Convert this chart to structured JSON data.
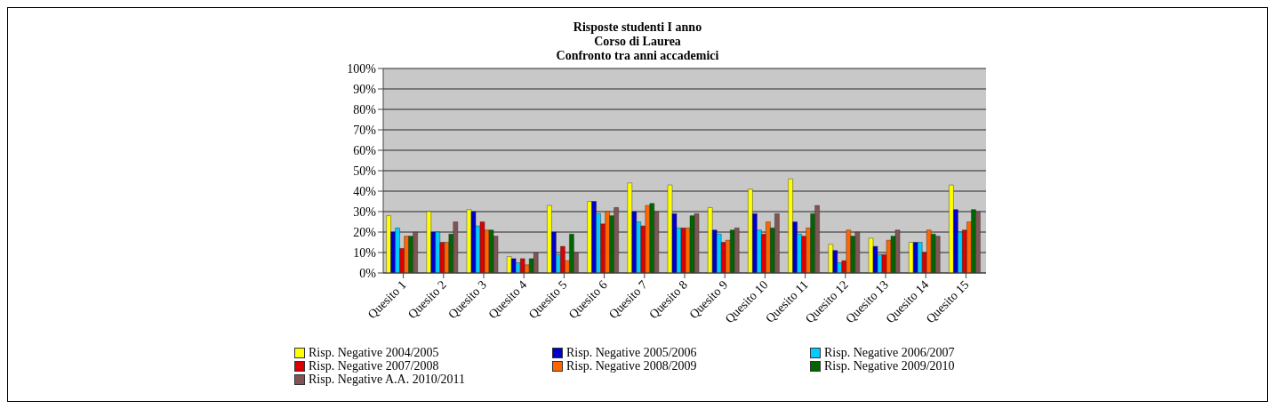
{
  "chart_data": {
    "type": "bar",
    "title": "Risposte studenti I anno\nCorso di Laurea\nConfronto tra anni accademici",
    "categories": [
      "Quesito 1",
      "Quesito 2",
      "Quesito 3",
      "Quesito 4",
      "Quesito 5",
      "Quesito 6",
      "Quesito 7",
      "Quesito 8",
      "Quesito 9",
      "Quesito 10",
      "Quesito 11",
      "Quesito 12",
      "Quesito 13",
      "Quesito 14",
      "Quesito 15"
    ],
    "series": [
      {
        "name": "Risp. Negative 2004/2005",
        "color": "#ffff00",
        "values": [
          28,
          30,
          31,
          8,
          33,
          35,
          44,
          43,
          32,
          41,
          46,
          14,
          17,
          15,
          43
        ]
      },
      {
        "name": "Risp. Negative 2005/2006",
        "color": "#0000cc",
        "values": [
          20,
          20,
          30,
          7,
          20,
          35,
          30,
          29,
          21,
          29,
          25,
          11,
          13,
          15,
          31
        ]
      },
      {
        "name": "Risp. Negative 2006/2007",
        "color": "#00ccff",
        "values": [
          22,
          20,
          23,
          5,
          9,
          29,
          25,
          22,
          19,
          21,
          19,
          5,
          9,
          15,
          20
        ]
      },
      {
        "name": "Risp. Negative 2007/2008",
        "color": "#dd0000",
        "values": [
          12,
          15,
          25,
          7,
          13,
          24,
          23,
          22,
          15,
          19,
          18,
          6,
          9,
          10,
          21
        ]
      },
      {
        "name": "Risp. Negative 2008/2009",
        "color": "#ff6600",
        "values": [
          18,
          15,
          21,
          4,
          6,
          30,
          33,
          22,
          16,
          25,
          22,
          21,
          16,
          21,
          25
        ]
      },
      {
        "name": "Risp. Negative 2009/2010",
        "color": "#006600",
        "values": [
          18,
          19,
          21,
          7,
          19,
          28,
          34,
          28,
          21,
          22,
          29,
          18,
          18,
          19,
          31
        ]
      },
      {
        "name": "Risp. Negative A.A. 2010/2011",
        "color": "#7f5555",
        "values": [
          20,
          25,
          18,
          10,
          10,
          32,
          30,
          29,
          22,
          29,
          33,
          20,
          21,
          18,
          30
        ]
      }
    ],
    "ylim": [
      0,
      100
    ],
    "yticks": [
      {
        "value": 0,
        "label": "0%"
      },
      {
        "value": 10,
        "label": "10%"
      },
      {
        "value": 20,
        "label": "20%"
      },
      {
        "value": 30,
        "label": "30%"
      },
      {
        "value": 40,
        "label": "40%"
      },
      {
        "value": 50,
        "label": "50%"
      },
      {
        "value": 60,
        "label": "60%"
      },
      {
        "value": 70,
        "label": "70%"
      },
      {
        "value": 80,
        "label": "80%"
      },
      {
        "value": 90,
        "label": "90%"
      },
      {
        "value": 100,
        "label": "100%"
      }
    ],
    "grid": "y",
    "legend": "bottom"
  }
}
